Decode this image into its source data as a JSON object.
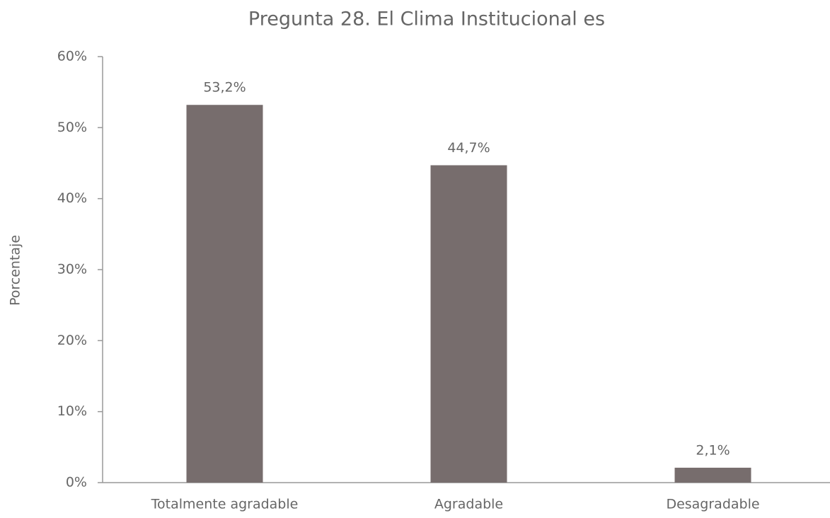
{
  "chart_data": {
    "type": "bar",
    "title": "Pregunta 28. El Clima Institucional es",
    "y_label": "Porcentaje",
    "categories": [
      "Totalmente agradable",
      "Agradable",
      "Desagradable"
    ],
    "values": [
      53.2,
      44.7,
      2.1
    ],
    "value_labels": [
      "53,2%",
      "44,7%",
      "2,1%"
    ],
    "color": "#776d6d",
    "ylim": [
      0,
      60
    ],
    "yticks": [
      {
        "value": 0,
        "label": "0%"
      },
      {
        "value": 10,
        "label": "10%"
      },
      {
        "value": 20,
        "label": "20%"
      },
      {
        "value": 30,
        "label": "30%"
      },
      {
        "value": 40,
        "label": "40%"
      },
      {
        "value": 50,
        "label": "50%"
      },
      {
        "value": 60,
        "label": "60%"
      }
    ],
    "grid": false
  }
}
